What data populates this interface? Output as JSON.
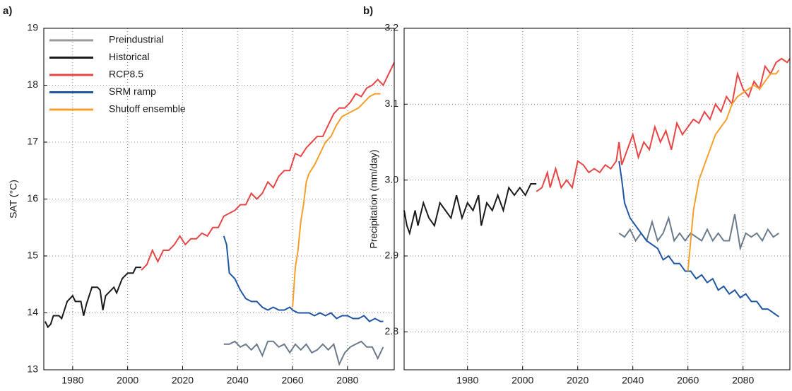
{
  "chart_data": [
    {
      "type": "line",
      "panel_label": "a)",
      "y_label": "SAT (°C)",
      "xlim": [
        1969.5,
        2097
      ],
      "xticks": [
        1980,
        2000,
        2020,
        2040,
        2060,
        2080
      ],
      "ylim": [
        13,
        19
      ],
      "yticks": [
        13,
        14,
        15,
        16,
        17,
        18,
        19
      ],
      "grid": true,
      "legend": "upper-left",
      "series": [
        {
          "name": "Preindustrial",
          "color": "#6b7b8c",
          "legend_color": "#999999",
          "x": [
            2035,
            2037,
            2039,
            2041,
            2043,
            2045,
            2047,
            2049,
            2051,
            2053,
            2055,
            2057,
            2059,
            2061,
            2063,
            2065,
            2067,
            2069,
            2071,
            2073,
            2075,
            2077,
            2079,
            2081,
            2083,
            2085,
            2087,
            2089,
            2091,
            2093
          ],
          "values": [
            13.45,
            13.45,
            13.5,
            13.4,
            13.45,
            13.35,
            13.45,
            13.25,
            13.5,
            13.5,
            13.4,
            13.45,
            13.3,
            13.45,
            13.35,
            13.45,
            13.3,
            13.35,
            13.45,
            13.35,
            13.45,
            13.1,
            13.3,
            13.4,
            13.45,
            13.5,
            13.4,
            13.4,
            13.2,
            13.4
          ]
        },
        {
          "name": "Historical",
          "color": "#1a1a1a",
          "x": [
            1970,
            1971,
            1972,
            1973,
            1975,
            1976,
            1978,
            1980,
            1981,
            1983,
            1984,
            1985,
            1987,
            1989,
            1990,
            1991,
            1992,
            1994,
            1995,
            1996,
            1998,
            2000,
            2002,
            2003,
            2005
          ],
          "values": [
            13.85,
            13.75,
            13.8,
            13.95,
            13.95,
            13.9,
            14.2,
            14.3,
            14.2,
            14.2,
            13.95,
            14.15,
            14.45,
            14.45,
            14.4,
            14.05,
            14.3,
            14.4,
            14.45,
            14.35,
            14.6,
            14.7,
            14.7,
            14.8,
            14.8
          ]
        },
        {
          "name": "RCP8.5",
          "color": "#e84545",
          "x": [
            2005,
            2007,
            2009,
            2011,
            2013,
            2015,
            2017,
            2019,
            2021,
            2023,
            2025,
            2027,
            2029,
            2031,
            2033,
            2035,
            2037,
            2039,
            2041,
            2043,
            2045,
            2047,
            2049,
            2051,
            2053,
            2055,
            2057,
            2059,
            2061,
            2063,
            2065,
            2067,
            2069,
            2071,
            2073,
            2075,
            2077,
            2079,
            2081,
            2083,
            2085,
            2087,
            2089,
            2091,
            2093,
            2095,
            2097
          ],
          "values": [
            14.75,
            14.85,
            15.1,
            14.9,
            15.1,
            15.1,
            15.2,
            15.35,
            15.2,
            15.3,
            15.3,
            15.4,
            15.35,
            15.5,
            15.5,
            15.7,
            15.75,
            15.8,
            15.9,
            15.9,
            16.1,
            16.0,
            16.1,
            16.3,
            16.2,
            16.4,
            16.5,
            16.5,
            16.8,
            16.75,
            16.9,
            17.0,
            17.1,
            17.1,
            17.3,
            17.5,
            17.6,
            17.6,
            17.7,
            17.85,
            17.8,
            17.95,
            18.0,
            18.1,
            18.0,
            18.2,
            18.4
          ]
        },
        {
          "name": "SRM ramp",
          "color": "#2156a5",
          "x": [
            2035,
            2036,
            2037,
            2039,
            2041,
            2043,
            2045,
            2047,
            2049,
            2051,
            2053,
            2055,
            2057,
            2059,
            2060,
            2062,
            2064,
            2066,
            2068,
            2070,
            2072,
            2074,
            2076,
            2078,
            2080,
            2082,
            2084,
            2086,
            2088,
            2090,
            2092,
            2093
          ],
          "values": [
            15.35,
            15.2,
            14.7,
            14.6,
            14.4,
            14.25,
            14.2,
            14.2,
            14.1,
            14.05,
            14.1,
            14.05,
            14.05,
            14.1,
            14.05,
            14.0,
            14.0,
            14.0,
            13.95,
            14.0,
            13.95,
            14.0,
            13.9,
            13.95,
            13.95,
            13.9,
            13.9,
            13.95,
            13.85,
            13.9,
            13.85,
            13.85
          ]
        },
        {
          "name": "Shutoff ensemble",
          "color": "#f5a02a",
          "x": [
            2060,
            2061,
            2062,
            2063,
            2064,
            2065,
            2066,
            2068,
            2070,
            2072,
            2074,
            2076,
            2078,
            2080,
            2082,
            2084,
            2086,
            2088,
            2090,
            2092
          ],
          "values": [
            14.1,
            14.8,
            15.1,
            15.6,
            15.9,
            16.3,
            16.45,
            16.6,
            16.8,
            17.0,
            17.1,
            17.3,
            17.45,
            17.5,
            17.55,
            17.6,
            17.7,
            17.8,
            17.85,
            17.85
          ]
        }
      ]
    },
    {
      "type": "line",
      "panel_label": "b)",
      "y_label": "Precipitation (mm/day)",
      "xlim": [
        1957,
        2097
      ],
      "xticks": [
        1980,
        2000,
        2020,
        2040,
        2060,
        2080
      ],
      "ylim": [
        2.75,
        3.2
      ],
      "yticks": [
        2.8,
        2.9,
        {
          "value": 3,
          "label": "3.0"
        },
        3.1,
        3.2
      ],
      "grid": true,
      "legend": "none",
      "series": [
        {
          "name": "Preindustrial",
          "color": "#6b7b8c",
          "x": [
            2035,
            2037,
            2039,
            2041,
            2043,
            2045,
            2047,
            2049,
            2051,
            2053,
            2055,
            2057,
            2059,
            2061,
            2063,
            2065,
            2067,
            2069,
            2071,
            2073,
            2075,
            2077,
            2079,
            2081,
            2083,
            2085,
            2087,
            2089,
            2091,
            2093
          ],
          "values": [
            2.93,
            2.925,
            2.935,
            2.92,
            2.93,
            2.92,
            2.945,
            2.92,
            2.93,
            2.95,
            2.92,
            2.93,
            2.92,
            2.93,
            2.925,
            2.92,
            2.935,
            2.92,
            2.93,
            2.92,
            2.92,
            2.955,
            2.91,
            2.93,
            2.925,
            2.93,
            2.92,
            2.935,
            2.925,
            2.93
          ]
        },
        {
          "name": "Historical",
          "color": "#1a1a1a",
          "x": [
            1957,
            1958,
            1959,
            1961,
            1962,
            1964,
            1966,
            1968,
            1970,
            1972,
            1974,
            1976,
            1978,
            1980,
            1982,
            1984,
            1985,
            1987,
            1989,
            1991,
            1993,
            1995,
            1997,
            1999,
            2001,
            2003,
            2005
          ],
          "values": [
            2.96,
            2.94,
            2.93,
            2.96,
            2.94,
            2.97,
            2.95,
            2.94,
            2.97,
            2.96,
            2.95,
            2.98,
            2.95,
            2.97,
            2.96,
            2.98,
            2.94,
            2.97,
            2.96,
            2.98,
            2.96,
            2.99,
            2.98,
            2.99,
            2.98,
            2.995,
            2.995
          ]
        },
        {
          "name": "RCP8.5",
          "color": "#e84545",
          "x": [
            2005,
            2007,
            2009,
            2010,
            2012,
            2014,
            2016,
            2018,
            2020,
            2022,
            2024,
            2026,
            2028,
            2030,
            2032,
            2034,
            2035,
            2036,
            2038,
            2040,
            2042,
            2044,
            2046,
            2048,
            2050,
            2052,
            2054,
            2056,
            2058,
            2060,
            2062,
            2064,
            2066,
            2068,
            2070,
            2072,
            2074,
            2076,
            2078,
            2080,
            2082,
            2084,
            2086,
            2088,
            2090,
            2092,
            2094,
            2096,
            2097
          ],
          "values": [
            2.985,
            2.99,
            3.01,
            2.99,
            3.015,
            2.99,
            3.0,
            2.99,
            3.025,
            3.02,
            3.01,
            3.015,
            3.01,
            3.02,
            3.015,
            3.025,
            3.05,
            3.02,
            3.04,
            3.06,
            3.03,
            3.05,
            3.04,
            3.07,
            3.05,
            3.065,
            3.04,
            3.075,
            3.06,
            3.07,
            3.08,
            3.075,
            3.09,
            3.08,
            3.1,
            3.09,
            3.11,
            3.1,
            3.14,
            3.12,
            3.11,
            3.13,
            3.12,
            3.15,
            3.14,
            3.155,
            3.16,
            3.155,
            3.16
          ]
        },
        {
          "name": "SRM ramp",
          "color": "#2156a5",
          "x": [
            2035,
            2036,
            2037,
            2039,
            2041,
            2043,
            2045,
            2047,
            2049,
            2051,
            2053,
            2055,
            2057,
            2059,
            2061,
            2063,
            2065,
            2067,
            2069,
            2071,
            2073,
            2075,
            2077,
            2079,
            2081,
            2083,
            2085,
            2087,
            2089,
            2091,
            2093
          ],
          "values": [
            3.025,
            3.0,
            2.97,
            2.95,
            2.94,
            2.93,
            2.92,
            2.915,
            2.91,
            2.895,
            2.9,
            2.89,
            2.89,
            2.88,
            2.88,
            2.87,
            2.875,
            2.865,
            2.87,
            2.855,
            2.86,
            2.85,
            2.855,
            2.845,
            2.85,
            2.84,
            2.84,
            2.83,
            2.83,
            2.825,
            2.82
          ]
        },
        {
          "name": "Shutoff ensemble",
          "color": "#f5a02a",
          "x": [
            2060,
            2061,
            2062,
            2063,
            2064,
            2066,
            2068,
            2070,
            2072,
            2074,
            2076,
            2078,
            2080,
            2082,
            2084,
            2086,
            2088,
            2090,
            2092,
            2093
          ],
          "values": [
            2.88,
            2.92,
            2.96,
            2.98,
            3.0,
            3.02,
            3.04,
            3.06,
            3.07,
            3.08,
            3.1,
            3.11,
            3.115,
            3.12,
            3.125,
            3.12,
            3.13,
            3.14,
            3.14,
            3.145
          ]
        }
      ]
    }
  ]
}
